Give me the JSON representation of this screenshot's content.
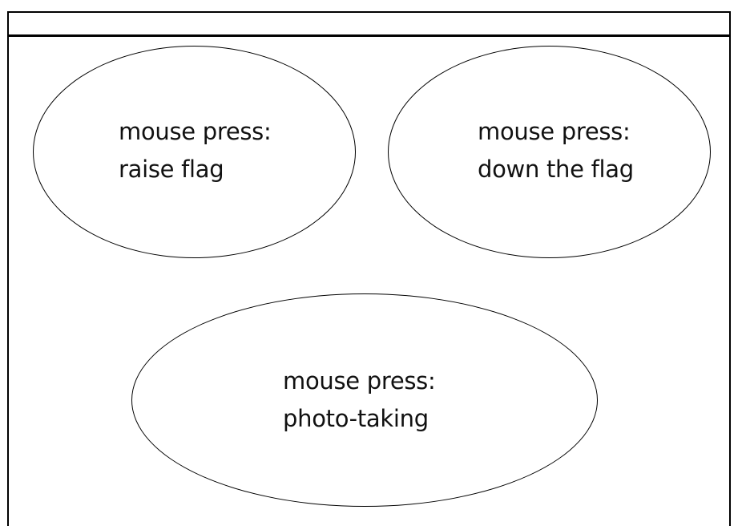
{
  "window": {
    "title": ""
  },
  "buttons": {
    "raise": {
      "line1": "mouse press:",
      "line2": "raise flag"
    },
    "down": {
      "line1": "mouse press:",
      "line2": "down the flag"
    },
    "photo": {
      "line1": "mouse press:",
      "line2": "photo-taking"
    }
  }
}
